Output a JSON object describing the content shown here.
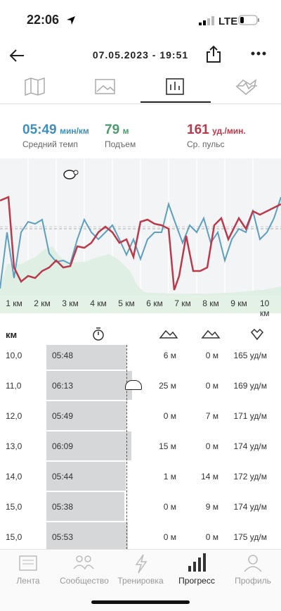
{
  "status": {
    "time": "22:06",
    "network": "LTE"
  },
  "header": {
    "title": "07.05.2023 - 19:51"
  },
  "stats": [
    {
      "value": "05:49",
      "unit": "мин/км",
      "label": "Средний темп"
    },
    {
      "value": "79",
      "unit": "м",
      "label": "Подъем"
    },
    {
      "value": "161",
      "unit": "уд./мин.",
      "label": "Ср. пульс"
    }
  ],
  "chart": {
    "x_labels": [
      "1 км",
      "2 км",
      "3 км",
      "4 км",
      "5 км",
      "6 км",
      "7 км",
      "8 км",
      "9 км",
      "10 км"
    ]
  },
  "table": {
    "header": "км",
    "rows": [
      [
        "10,0",
        "05:48",
        "6 м",
        "0 м",
        "165 уд/м"
      ],
      [
        "11,0",
        "06:13",
        "25 м",
        "0 м",
        "169 уд/м"
      ],
      [
        "12,0",
        "05:49",
        "0 м",
        "7 м",
        "171 уд/м"
      ],
      [
        "13,0",
        "06:09",
        "15 м",
        "0 м",
        "174 уд/м"
      ],
      [
        "14,0",
        "05:44",
        "1 м",
        "14 м",
        "172 уд/м"
      ],
      [
        "15,0",
        "05:38",
        "0 м",
        "9 м",
        "174 уд/м"
      ],
      [
        "15,0",
        "05:53",
        "0 м",
        "0 м",
        "175 уд/м"
      ]
    ]
  },
  "nav": [
    "Лента",
    "Сообщество",
    "Тренировка",
    "Прогресс",
    "Профиль"
  ]
}
